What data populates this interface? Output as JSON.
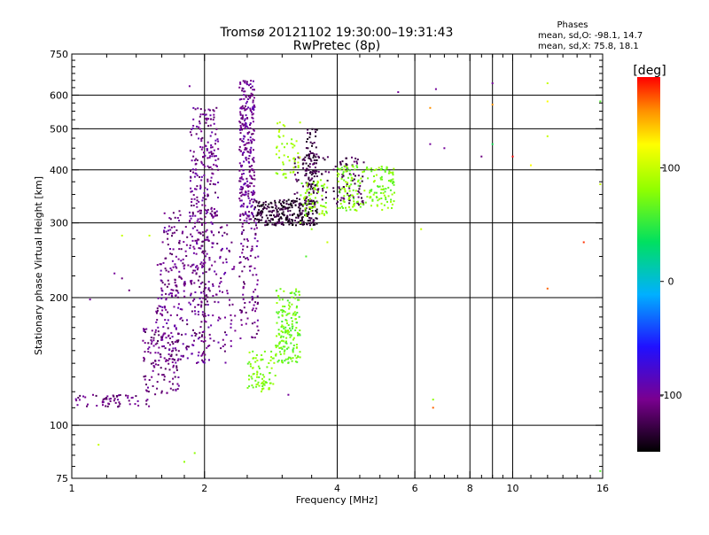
{
  "chart_data": {
    "type": "scatter",
    "title": "Tromsø 20121102 19:30:00–19:31:43",
    "subtitle": "RwPretec (8p)",
    "xlabel": "Frequency [MHz]",
    "ylabel": "Stationary phase Virtual Height [km]",
    "x_scale": "log",
    "y_scale": "log",
    "xlim": [
      1,
      16
    ],
    "ylim": [
      75,
      750
    ],
    "x_ticks": [
      1,
      2,
      4,
      6,
      8,
      10,
      16
    ],
    "x_minor_ticks": [
      1.2,
      1.4,
      1.6,
      1.8,
      2.5,
      3,
      3.5,
      4.5,
      5,
      5.5,
      6.5,
      7,
      7.5,
      8.5,
      9,
      9.5,
      11,
      12,
      13,
      14,
      15
    ],
    "x_gridlines": [
      2,
      4,
      6,
      8,
      9,
      10
    ],
    "y_ticks": [
      75,
      100,
      200,
      300,
      400,
      500,
      600,
      750
    ],
    "y_minor_ticks": [
      80,
      85,
      90,
      95,
      110,
      120,
      130,
      140,
      150,
      160,
      170,
      180,
      190,
      225,
      250,
      275,
      325,
      350,
      375,
      425,
      450,
      475,
      525,
      550,
      575,
      625,
      650,
      675,
      700,
      725
    ],
    "y_gridlines": [
      100,
      200,
      300,
      400,
      500,
      600
    ],
    "grid": true,
    "colorbar": {
      "label": "[deg]",
      "min": -150,
      "max": 180,
      "ticks": [
        100,
        0,
        -100
      ]
    },
    "stats": {
      "heading": "Phases",
      "line1": "mean, sd,O:  -98.1, 14.7",
      "line2": "mean, sd,X:  75.8, 18.1"
    },
    "clusters": [
      {
        "name": "low-f tail blue",
        "x": [
          1.02,
          1.5
        ],
        "y": [
          110,
          118
        ],
        "phase": -110,
        "n": 60
      },
      {
        "name": "E-to-F rise blue",
        "x": [
          1.45,
          1.75
        ],
        "y": [
          118,
          170
        ],
        "phase": -110,
        "n": 110
      },
      {
        "name": "F1 band blue",
        "x": [
          1.55,
          2.05
        ],
        "y": [
          140,
          240
        ],
        "phase": -105,
        "n": 240
      },
      {
        "name": "F1 upper blue",
        "x": [
          1.6,
          2.1
        ],
        "y": [
          230,
          320
        ],
        "phase": -105,
        "n": 120
      },
      {
        "name": "F2 trace near 2 MHz",
        "x": [
          1.85,
          2.15
        ],
        "y": [
          300,
          560
        ],
        "phase": -105,
        "n": 200
      },
      {
        "name": "lower band near 2 MHz",
        "x": [
          1.95,
          2.35
        ],
        "y": [
          140,
          300
        ],
        "phase": -105,
        "n": 120
      },
      {
        "name": "F2 cusp 2.4-2.6 MHz",
        "x": [
          2.4,
          2.6
        ],
        "y": [
          300,
          650
        ],
        "phase": -102,
        "n": 280
      },
      {
        "name": "lower band 2.4-2.6 MHz",
        "x": [
          2.4,
          2.65
        ],
        "y": [
          160,
          300
        ],
        "phase": -105,
        "n": 90
      },
      {
        "name": "F2 plateau purple",
        "x": [
          2.6,
          3.6
        ],
        "y": [
          296,
          340
        ],
        "phase": -135,
        "n": 280
      },
      {
        "name": "upper plateau purple",
        "x": [
          3.2,
          4.6
        ],
        "y": [
          330,
          430
        ],
        "phase": -125,
        "n": 150
      },
      {
        "name": "cusp near 3.5 MHz",
        "x": [
          3.4,
          3.6
        ],
        "y": [
          360,
          500
        ],
        "phase": -130,
        "n": 80
      },
      {
        "name": "X-mode upper yellow-green",
        "x": [
          4,
          5.4
        ],
        "y": [
          320,
          410
        ],
        "phase": 75,
        "n": 180
      },
      {
        "name": "X-mode near 3.5 MHz",
        "x": [
          3.3,
          3.8
        ],
        "y": [
          310,
          380
        ],
        "phase": 80,
        "n": 60
      },
      {
        "name": "X-mode top near 3 MHz",
        "x": [
          2.9,
          3.3
        ],
        "y": [
          380,
          520
        ],
        "phase": 90,
        "n": 50
      },
      {
        "name": "X-mode middle near 3 MHz",
        "x": [
          2.9,
          3.3
        ],
        "y": [
          140,
          210
        ],
        "phase": 70,
        "n": 170
      },
      {
        "name": "X-mode low near 2.5 MHz",
        "x": [
          2.5,
          2.9
        ],
        "y": [
          120,
          150
        ],
        "phase": 75,
        "n": 80
      }
    ],
    "sparse_points": [
      {
        "x": 1.85,
        "y": 630,
        "phase": -100
      },
      {
        "x": 5.5,
        "y": 610,
        "phase": -100
      },
      {
        "x": 6.7,
        "y": 620,
        "phase": -100
      },
      {
        "x": 9,
        "y": 640,
        "phase": -100
      },
      {
        "x": 6.5,
        "y": 560,
        "phase": 150
      },
      {
        "x": 9,
        "y": 570,
        "phase": 150
      },
      {
        "x": 12,
        "y": 640,
        "phase": 100
      },
      {
        "x": 12,
        "y": 580,
        "phase": 120
      },
      {
        "x": 9,
        "y": 460,
        "phase": 40
      },
      {
        "x": 6.5,
        "y": 460,
        "phase": -100
      },
      {
        "x": 7,
        "y": 450,
        "phase": -100
      },
      {
        "x": 8.5,
        "y": 430,
        "phase": -110
      },
      {
        "x": 10,
        "y": 430,
        "phase": 180
      },
      {
        "x": 11,
        "y": 410,
        "phase": 120
      },
      {
        "x": 12,
        "y": 480,
        "phase": 100
      },
      {
        "x": 15.8,
        "y": 580,
        "phase": 60
      },
      {
        "x": 15.8,
        "y": 370,
        "phase": 100
      },
      {
        "x": 14.5,
        "y": 270,
        "phase": 170
      },
      {
        "x": 12,
        "y": 210,
        "phase": 160
      },
      {
        "x": 1.1,
        "y": 198,
        "phase": -100
      },
      {
        "x": 1.25,
        "y": 228,
        "phase": -100
      },
      {
        "x": 1.3,
        "y": 222,
        "phase": -110
      },
      {
        "x": 1.35,
        "y": 208,
        "phase": -110
      },
      {
        "x": 1.5,
        "y": 280,
        "phase": 100
      },
      {
        "x": 1.7,
        "y": 260,
        "phase": -100
      },
      {
        "x": 3.3,
        "y": 300,
        "phase": 80
      },
      {
        "x": 3.5,
        "y": 290,
        "phase": 80
      },
      {
        "x": 3.8,
        "y": 270,
        "phase": 100
      },
      {
        "x": 3.4,
        "y": 250,
        "phase": 60
      },
      {
        "x": 3.1,
        "y": 118,
        "phase": -100
      },
      {
        "x": 6.6,
        "y": 115,
        "phase": 80
      },
      {
        "x": 6.6,
        "y": 110,
        "phase": 160
      },
      {
        "x": 6.2,
        "y": 290,
        "phase": 100
      },
      {
        "x": 1.15,
        "y": 90,
        "phase": 100
      },
      {
        "x": 1.8,
        "y": 82,
        "phase": 80
      },
      {
        "x": 1.9,
        "y": 86,
        "phase": 80
      },
      {
        "x": 15.8,
        "y": 78,
        "phase": 60
      },
      {
        "x": 1.3,
        "y": 280,
        "phase": 100
      }
    ]
  }
}
